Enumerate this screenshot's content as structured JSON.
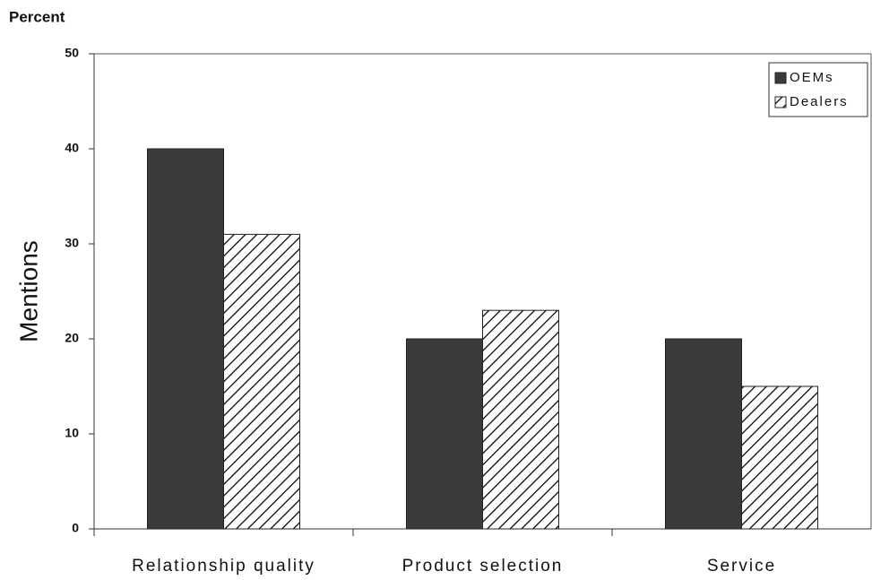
{
  "chart_data": {
    "type": "bar",
    "title": "Percent",
    "y_label": "Mentions",
    "categories": [
      "Relationship quality",
      "Product selection",
      "Service"
    ],
    "series": [
      {
        "name": "OEMs",
        "color": "#3a3a3a",
        "values": [
          40,
          20,
          20
        ]
      },
      {
        "name": "Dealers",
        "color": "#000000",
        "hatch": true,
        "values": [
          31,
          23,
          15
        ]
      }
    ],
    "ylim": [
      0,
      50
    ],
    "yticks": [
      0,
      10,
      20,
      30,
      40,
      50
    ],
    "grid": false,
    "legend": "top-right"
  }
}
